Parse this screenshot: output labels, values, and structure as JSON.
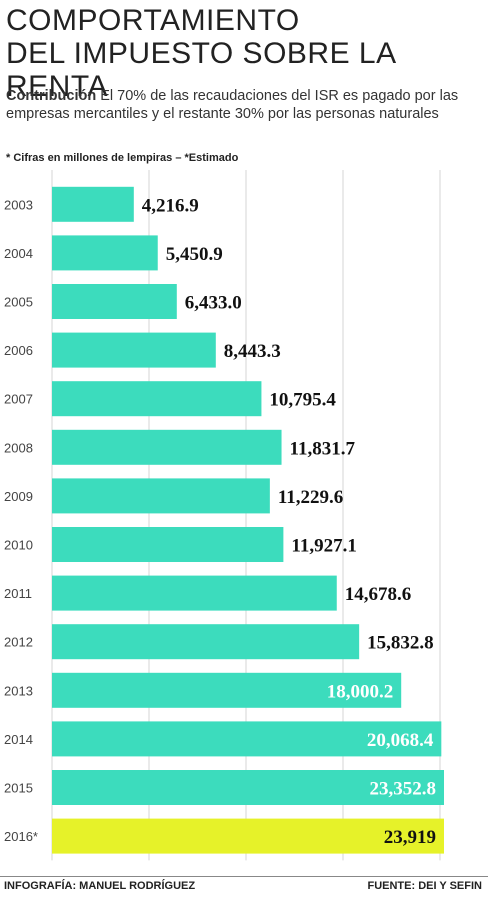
{
  "header": {
    "title_line1": "COMPORTAMIENTO",
    "title_line2": "DEL IMPUESTO SOBRE LA RENTA",
    "subtitle_bold": "Contribución",
    "subtitle_text": "El 70% de las recaudaciones del ISR es pagado por las empresas mercantiles y el restante 30% por las personas naturales",
    "note": "* Cifras en millones de lempiras – *Estimado"
  },
  "footer": {
    "credit": "INFOGRAFÍA: MANUEL RODRÍGUEZ",
    "source": "FUENTE: DEI Y SEFIN"
  },
  "colors": {
    "bar": "#3cdcbd",
    "bar_highlight": "#e6f229",
    "grid": "#d4d4d4",
    "label_dark": "#111111",
    "label_light": "#ffffff"
  },
  "chart_data": {
    "type": "bar",
    "orientation": "horizontal",
    "categories": [
      "2003",
      "2004",
      "2005",
      "2006",
      "2007",
      "2008",
      "2009",
      "2010",
      "2011",
      "2012",
      "2013",
      "2014",
      "2015",
      "2016*"
    ],
    "values": [
      4216.9,
      5450.9,
      6433.0,
      8443.3,
      10795.4,
      11831.7,
      11229.6,
      11927.1,
      14678.6,
      15832.8,
      18000.2,
      20068.4,
      23352.8,
      23919
    ],
    "value_labels": [
      "4,216.9",
      "5,450.9",
      "6,433.0",
      "8,443.3",
      "10,795.4",
      "11,831.7",
      "11,229.6",
      "11,927.1",
      "14,678.6",
      "15,832.8",
      "18,000.2",
      "20,068.4",
      "23,352.8",
      "23,919"
    ],
    "highlight_index": 13,
    "label_inside_from_index": 10,
    "xticks": [
      0,
      5000,
      10000,
      15000,
      20000
    ],
    "xtick_labels": [
      "0",
      "5,000",
      "10,000",
      "15,000",
      "20,000"
    ],
    "xlim": [
      0,
      20000
    ],
    "grid": true,
    "title": "COMPORTAMIENTO DEL IMPUESTO SOBRE LA RENTA",
    "xlabel": "",
    "ylabel": ""
  }
}
